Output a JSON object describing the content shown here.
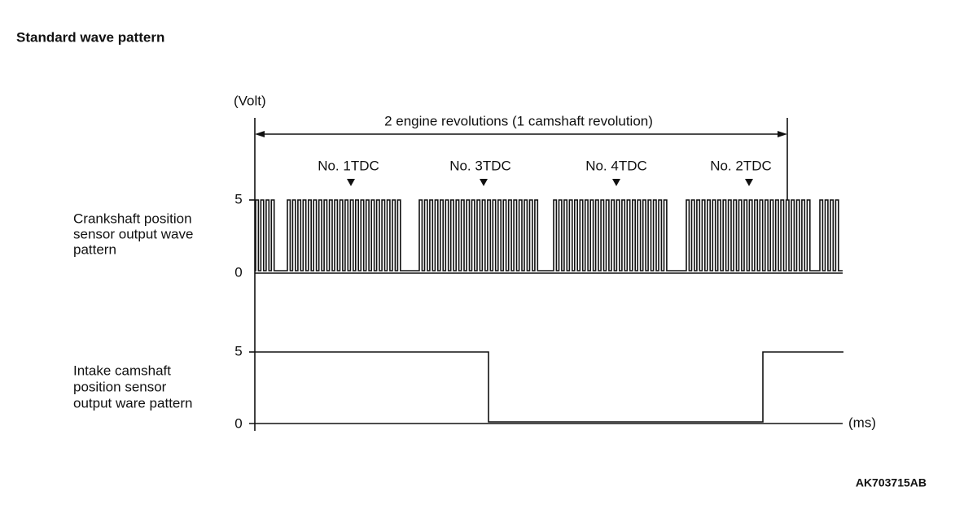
{
  "header": {
    "title": "Standard wave pattern"
  },
  "diagram": {
    "y_axis_label": "(Volt)",
    "x_axis_label": "(ms)",
    "span_label": "2 engine revolutions (1 camshaft revolution)",
    "tdc_labels": [
      "No. 1TDC",
      "No. 3TDC",
      "No. 4TDC",
      "No. 2TDC"
    ],
    "crank": {
      "label_lines": [
        "Crankshaft position",
        "sensor output wave",
        "pattern"
      ],
      "high_label": "5",
      "low_label": "0"
    },
    "cam": {
      "label_lines": [
        "Intake camshaft",
        "position sensor",
        "output ware pattern"
      ],
      "high_label": "5",
      "low_label": "0"
    }
  },
  "footer": {
    "code": "AK703715AB"
  }
}
